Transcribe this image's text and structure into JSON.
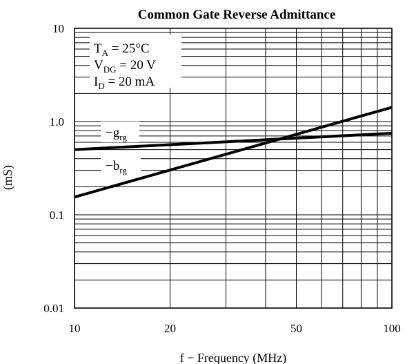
{
  "chart_data": {
    "type": "line",
    "title": "Common Gate Reverse Admittance",
    "xlabel": "f − Frequency (MHz)",
    "ylabel": "(mS)",
    "x_scale": "log",
    "y_scale": "log",
    "xlim": [
      10,
      100
    ],
    "ylim": [
      0.01,
      10
    ],
    "grid": true,
    "x_ticks": [
      "10",
      "20",
      "50",
      "100"
    ],
    "y_ticks": [
      "10",
      "1.0",
      "0.1",
      "0.01"
    ],
    "x_tick_values": [
      10,
      20,
      50,
      100
    ],
    "y_tick_values": [
      10,
      1.0,
      0.1,
      0.01
    ],
    "conditions": [
      {
        "base": "T",
        "sub": "A",
        "rest": " = 25°C"
      },
      {
        "base": "V",
        "sub": "DG",
        "rest": " = 20 V"
      },
      {
        "base": "I",
        "sub": "D",
        "rest": " = 20 mA"
      }
    ],
    "series": [
      {
        "base": "−g",
        "sub": "rg",
        "x": [
          10,
          100
        ],
        "y": [
          0.5,
          0.75
        ]
      },
      {
        "base": "−b",
        "sub": "rg",
        "x": [
          10,
          100
        ],
        "y": [
          0.155,
          1.42
        ]
      }
    ]
  }
}
